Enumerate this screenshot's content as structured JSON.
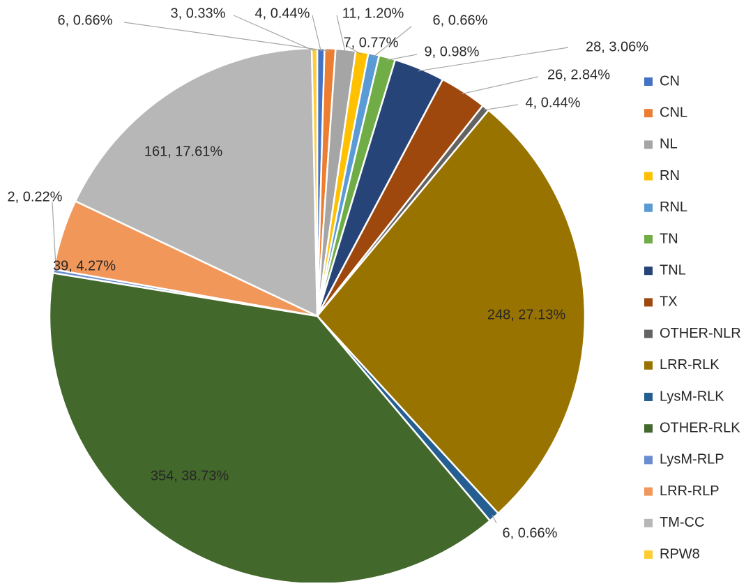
{
  "chart_data": {
    "type": "pie",
    "title": "",
    "legend_position": "right",
    "slices": [
      {
        "name": "CN",
        "value": 4,
        "percent": "0.44%",
        "label": "4, 0.44%",
        "color": "#4472C4"
      },
      {
        "name": "CNL",
        "value": 6,
        "percent": "0.66%",
        "label": "6, 0.66%",
        "color": "#ED7D31"
      },
      {
        "name": "NL",
        "value": 11,
        "percent": "1.20%",
        "label": "11, 1.20%",
        "color": "#A5A5A5"
      },
      {
        "name": "RN",
        "value": 7,
        "percent": "0.77%",
        "label": "7, 0.77%",
        "color": "#FFC000"
      },
      {
        "name": "RNL",
        "value": 6,
        "percent": "0.66%",
        "label": "6, 0.66%",
        "color": "#5B9BD5"
      },
      {
        "name": "TN",
        "value": 9,
        "percent": "0.98%",
        "label": "9, 0.98%",
        "color": "#70AD47"
      },
      {
        "name": "TNL",
        "value": 28,
        "percent": "3.06%",
        "label": "28, 3.06%",
        "color": "#264478"
      },
      {
        "name": "TX",
        "value": 26,
        "percent": "2.84%",
        "label": "26, 2.84%",
        "color": "#9E480E"
      },
      {
        "name": "OTHER-NLR",
        "value": 4,
        "percent": "0.44%",
        "label": "4, 0.44%",
        "color": "#636363"
      },
      {
        "name": "LRR-RLK",
        "value": 248,
        "percent": "27.13%",
        "label": "248, 27.13%",
        "color": "#997300"
      },
      {
        "name": "LysM-RLK",
        "value": 6,
        "percent": "0.66%",
        "label": "6, 0.66%",
        "color": "#255E91"
      },
      {
        "name": "OTHER-RLK",
        "value": 354,
        "percent": "38.73%",
        "label": "354, 38.73%",
        "color": "#43682B"
      },
      {
        "name": "LysM-RLP",
        "value": 2,
        "percent": "0.22%",
        "label": "2, 0.22%",
        "color": "#698ED0"
      },
      {
        "name": "LRR-RLP",
        "value": 39,
        "percent": "4.27%",
        "label": "39, 4.27%",
        "color": "#F1975A"
      },
      {
        "name": "TM-CC",
        "value": 161,
        "percent": "17.61%",
        "label": "161, 17.61%",
        "color": "#B7B7B7"
      },
      {
        "name": "RPW8",
        "value": 3,
        "percent": "0.33%",
        "label": "3, 0.33%",
        "color": "#FFCD33"
      }
    ]
  }
}
